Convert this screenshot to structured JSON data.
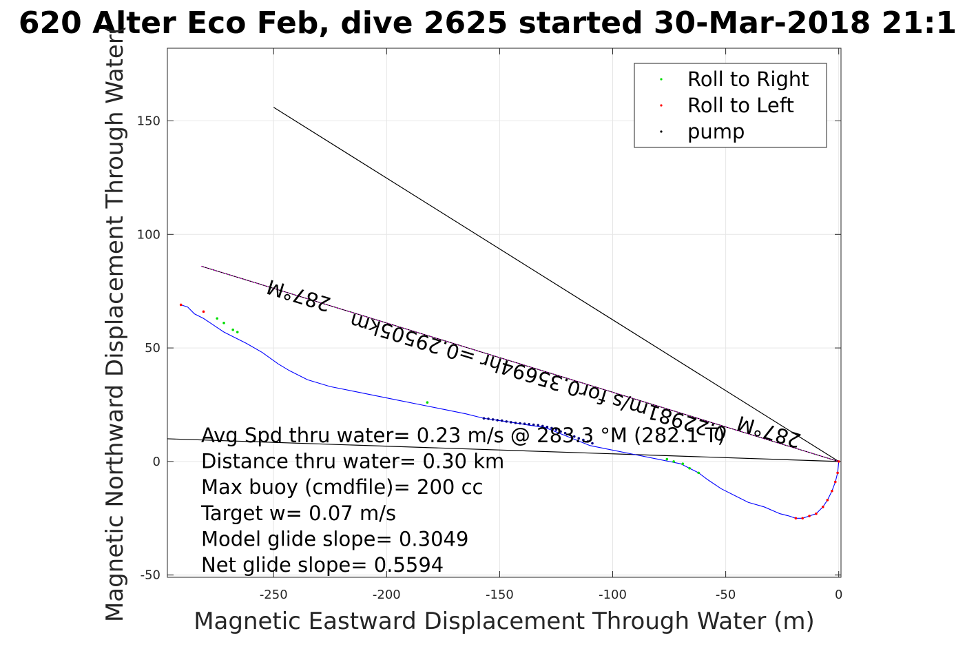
{
  "chart_data": {
    "type": "line",
    "title": "620 Alter Eco Feb, dive 2625 started 30-Mar-2018 21:1",
    "xlabel": "Magnetic Eastward Displacement Through Water (m)",
    "ylabel": "Magnetic Northward Displacement Through Water(",
    "xlim": [
      -297,
      1
    ],
    "ylim": [
      -51,
      182
    ],
    "xticks": [
      -250,
      -200,
      -150,
      -100,
      -50,
      0
    ],
    "yticks": [
      150,
      100,
      50,
      0,
      -50
    ],
    "grid": true,
    "legend_position": "top-right",
    "legend": [
      "Roll to Right",
      "Roll to Left",
      "pump"
    ],
    "colors": {
      "track": "#0000ff",
      "roll_right": "#00dd00",
      "roll_left": "#ff0000",
      "pump": "#000080",
      "magenta_line": "#ff00ff",
      "reference_lines": "#000000"
    },
    "track": {
      "x": [
        -291,
        -288,
        -285,
        -281,
        -278,
        -275,
        -272,
        -268,
        -262,
        -255,
        -248,
        -243,
        -235,
        -225,
        -215,
        -205,
        -195,
        -185,
        -175,
        -165,
        -157,
        -150,
        -143,
        -137,
        -130,
        -125,
        -120,
        -115,
        -110,
        -100,
        -90,
        -80,
        -75,
        -70,
        -66,
        -62,
        -58,
        -52,
        -46,
        -40,
        -33,
        -26,
        -22,
        -19,
        -16,
        -13,
        -10,
        -7,
        -5,
        -3,
        -1.5,
        -0.5,
        0
      ],
      "y": [
        69,
        68,
        65,
        63,
        61,
        59,
        57,
        55,
        52,
        48,
        43,
        40,
        36,
        33,
        31,
        29,
        27,
        25,
        23,
        21,
        19,
        18,
        17,
        16,
        15,
        13,
        11,
        9,
        7,
        5,
        3,
        1,
        0,
        -1,
        -3,
        -5,
        -8,
        -12,
        -15,
        -18,
        -20,
        -23,
        -24,
        -25,
        -25,
        -24,
        -23,
        -20,
        -17,
        -13,
        -9,
        -5,
        0
      ]
    },
    "roll_right_points": {
      "x": [
        -275,
        -272,
        -268,
        -266,
        -182,
        -76,
        -73,
        -69,
        -66,
        -62
      ],
      "y": [
        63,
        61,
        58,
        57,
        26,
        1,
        0,
        -1,
        -3,
        -5
      ]
    },
    "roll_left_points": {
      "x": [
        -291,
        -281,
        -19,
        -16,
        -13,
        -10,
        -7,
        -5,
        -3,
        -1.5,
        -0.5,
        0
      ],
      "y": [
        69,
        66,
        -25,
        -25,
        -24,
        -23,
        -20,
        -17,
        -13,
        -9,
        -5,
        0
      ]
    },
    "pump_points": {
      "x": [
        -157,
        -155,
        -153,
        -151,
        -149,
        -147,
        -145,
        -143,
        -141,
        -139,
        -137,
        -135,
        -133,
        -131,
        -129,
        -127,
        -125,
        -123,
        -121,
        -119,
        -117,
        -115,
        -113,
        -111,
        -109
      ],
      "y": [
        19,
        18.8,
        18.5,
        18.2,
        18,
        17.6,
        17.3,
        17,
        16.8,
        16.6,
        16.4,
        16.2,
        16,
        15.6,
        15.2,
        14.7,
        14,
        13.2,
        12.5,
        11.8,
        11,
        10.2,
        9.5,
        8.8,
        8
      ]
    },
    "reference_lines": [
      {
        "x": [
          -250,
          0
        ],
        "y": [
          156,
          0
        ]
      },
      {
        "x": [
          -297,
          0
        ],
        "y": [
          10,
          0
        ]
      }
    ],
    "heading_line": {
      "x": [
        -282,
        0
      ],
      "y": [
        86,
        0
      ]
    },
    "rotated_labels": [
      {
        "text": "287°M",
        "x": -238,
        "y": 76,
        "angle": 197
      },
      {
        "text": "0.22981m/s for0.35694hr =0.29505km",
        "x": -132,
        "y": 40,
        "angle": 197
      },
      {
        "text": "287°M",
        "x": -30,
        "y": 16,
        "angle": 197
      }
    ],
    "annotations": [
      "Avg Spd thru water=  0.23 m/s @ 283.3 °M (282.1 T)",
      "Distance thru water=  0.30 km",
      "Max buoy (cmdfile)= 200 cc",
      "Target w= 0.07 m/s",
      "Model glide slope= 0.3049",
      "Net glide slope= 0.5594"
    ]
  }
}
